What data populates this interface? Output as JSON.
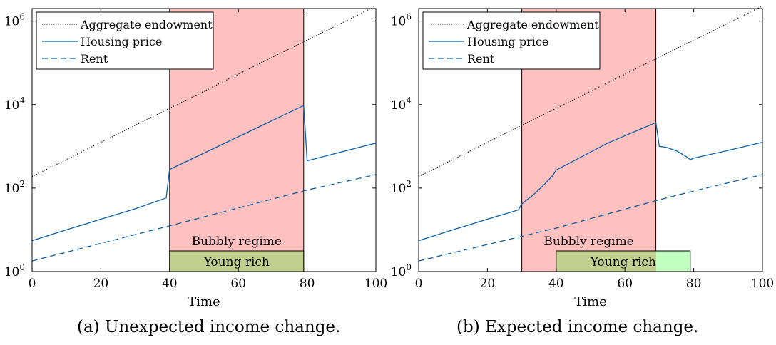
{
  "captions": {
    "a": "(a) Unexpected income change.",
    "b": "(b) Expected income change."
  },
  "chart_data": [
    {
      "type": "line",
      "panel": "a",
      "caption": "(a) Unexpected income change.",
      "xlabel": "Time",
      "ylabel": "",
      "xlim": [
        0,
        100
      ],
      "ylim": [
        1,
        2000000
      ],
      "yscale": "log",
      "xticks": [
        0,
        20,
        40,
        60,
        80,
        100
      ],
      "yticks": [
        {
          "value": 1,
          "label": "10^0"
        },
        {
          "value": 100,
          "label": "10^2"
        },
        {
          "value": 10000,
          "label": "10^4"
        },
        {
          "value": 1000000,
          "label": "10^6"
        }
      ],
      "grid": false,
      "legend": {
        "position": "top-left",
        "entries": [
          "Aggregate endowment",
          "Housing price",
          "Rent"
        ]
      },
      "series": [
        {
          "name": "Aggregate endowment",
          "style": "dotted",
          "color": "#000000",
          "x": [
            0,
            100
          ],
          "y": [
            190,
            2300000
          ]
        },
        {
          "name": "Housing price",
          "style": "solid",
          "color": "#0b5fa5",
          "x": [
            0,
            10,
            20,
            30,
            39,
            40,
            79,
            80,
            100
          ],
          "y": [
            5.5,
            10,
            18,
            32,
            58,
            280,
            9500,
            450,
            1200
          ]
        },
        {
          "name": "Rent",
          "style": "dashed",
          "color": "#0b5fa5",
          "x": [
            0,
            40,
            80,
            100
          ],
          "y": [
            1.8,
            12.5,
            90,
            210
          ]
        }
      ],
      "regions": [
        {
          "label": "Bubbly regime",
          "x": [
            40,
            79
          ],
          "color": "#ffc0c0"
        },
        {
          "label": "Young rich",
          "x": [
            40,
            79
          ],
          "color": "#c2cf8f"
        }
      ]
    },
    {
      "type": "line",
      "panel": "b",
      "caption": "(b) Expected income change.",
      "xlabel": "Time",
      "ylabel": "",
      "xlim": [
        0,
        100
      ],
      "ylim": [
        1,
        2000000
      ],
      "yscale": "log",
      "xticks": [
        0,
        20,
        40,
        60,
        80,
        100
      ],
      "yticks": [
        {
          "value": 1,
          "label": "10^0"
        },
        {
          "value": 100,
          "label": "10^2"
        },
        {
          "value": 10000,
          "label": "10^4"
        },
        {
          "value": 1000000,
          "label": "10^6"
        }
      ],
      "grid": false,
      "legend": {
        "position": "top-left",
        "entries": [
          "Aggregate endowment",
          "Housing price",
          "Rent"
        ]
      },
      "series": [
        {
          "name": "Aggregate endowment",
          "style": "dotted",
          "color": "#000000",
          "x": [
            0,
            100
          ],
          "y": [
            190,
            2300000
          ]
        },
        {
          "name": "Housing price",
          "style": "solid",
          "color": "#0b5fa5",
          "x": [
            0,
            10,
            20,
            29,
            30,
            33,
            36,
            39,
            40,
            55,
            69,
            70,
            72,
            75,
            78,
            79,
            80,
            90,
            100
          ],
          "y": [
            5.5,
            10,
            18,
            30,
            42,
            65,
            110,
            200,
            270,
            1200,
            3700,
            1000,
            950,
            780,
            560,
            480,
            520,
            800,
            1250
          ]
        },
        {
          "name": "Rent",
          "style": "dashed",
          "color": "#0b5fa5",
          "x": [
            0,
            30,
            40,
            69,
            80,
            100
          ],
          "y": [
            1.8,
            7,
            11,
            50,
            85,
            210
          ]
        }
      ],
      "regions": [
        {
          "label": "Bubbly regime",
          "x": [
            30,
            69
          ],
          "color": "#ffc0c0"
        },
        {
          "label": "Young rich",
          "x": [
            40,
            79
          ],
          "color": "#c2cf8f",
          "overflow_color": "#c0ffc0"
        }
      ]
    }
  ]
}
